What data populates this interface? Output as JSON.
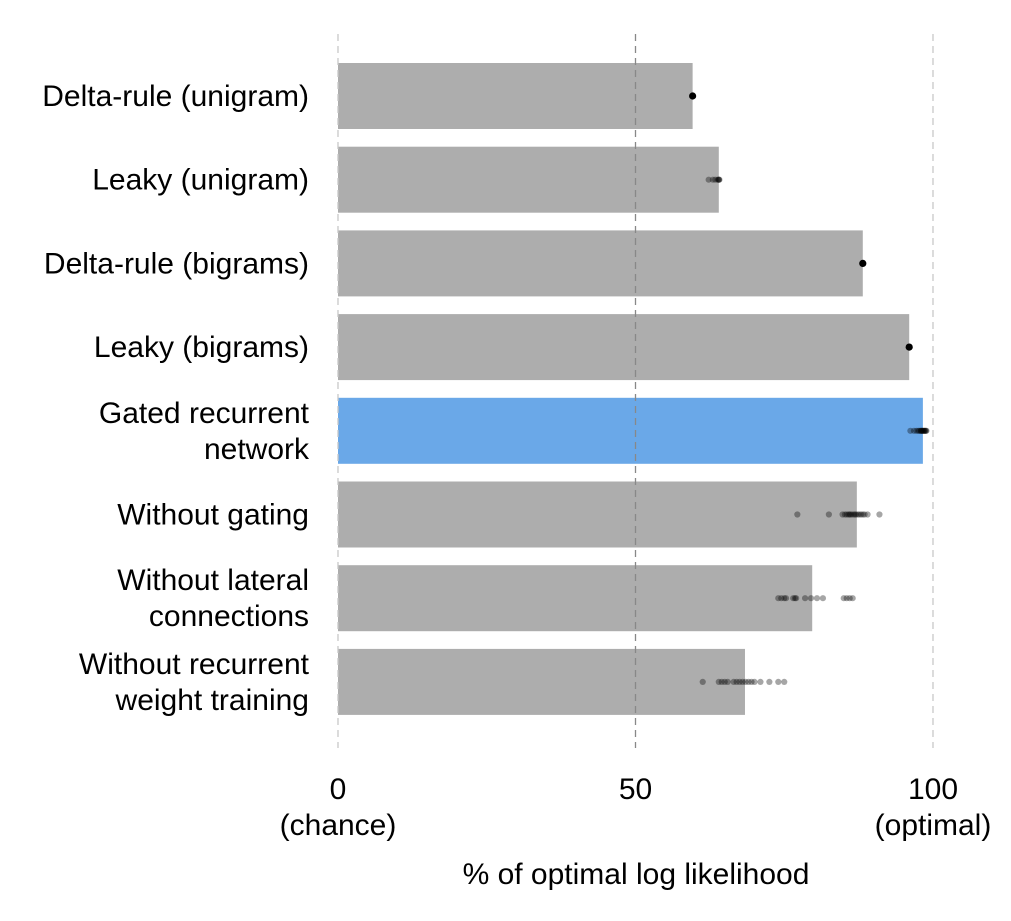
{
  "chart_data": {
    "type": "bar",
    "orientation": "horizontal",
    "categories": [
      [
        "Delta-rule (unigram)"
      ],
      [
        "Leaky (unigram)"
      ],
      [
        "Delta-rule (bigrams)"
      ],
      [
        "Leaky (bigrams)"
      ],
      [
        "Gated recurrent",
        "network"
      ],
      [
        "Without gating"
      ],
      [
        "Without lateral",
        "connections"
      ],
      [
        "Without recurrent",
        "weight training"
      ]
    ],
    "values": [
      59.6,
      64.0,
      88.2,
      96.0,
      98.3,
      87.2,
      79.7,
      68.4
    ],
    "highlight_index": 4,
    "individual_points": [
      [
        59.6
      ],
      [
        62.3,
        63.0,
        63.4,
        63.8,
        64.0,
        64.0,
        64.1
      ],
      [
        88.2
      ],
      [
        96.0
      ],
      [
        96.2,
        96.8,
        97.2,
        97.5,
        97.7,
        97.9,
        98.0,
        98.1,
        98.2,
        98.3,
        98.4,
        98.5,
        98.6,
        98.7,
        98.8,
        98.9
      ],
      [
        77.2,
        82.5,
        84.8,
        85.2,
        85.5,
        85.8,
        86.0,
        86.2,
        86.5,
        86.8,
        87.0,
        87.3,
        87.6,
        87.9,
        88.2,
        88.5,
        89.0,
        91.0
      ],
      [
        74.0,
        74.5,
        75.0,
        75.3,
        76.5,
        76.8,
        77.0,
        78.5,
        79.5,
        80.5,
        81.5,
        85.0,
        85.5,
        86.0,
        86.5
      ],
      [
        61.3,
        64.0,
        64.5,
        65.0,
        65.5,
        66.5,
        67.0,
        67.5,
        68.0,
        68.5,
        69.0,
        69.5,
        70.0,
        71.0,
        72.5,
        74.0,
        75.0
      ]
    ],
    "xlim": [
      0,
      100
    ],
    "xticks": [
      {
        "value": 0,
        "label": "0",
        "sublabel": "(chance)"
      },
      {
        "value": 50,
        "label": "50",
        "sublabel": ""
      },
      {
        "value": 100,
        "label": "100",
        "sublabel": "(optimal)"
      }
    ],
    "xlabel": "% of optimal log likelihood",
    "grid": "vertical dashed at ticks",
    "colors": {
      "bar": "#adadad",
      "highlight": "#6aa8e8",
      "point": "#000000",
      "grid": "#c8c8c8",
      "grid_mid": "#888888"
    }
  }
}
